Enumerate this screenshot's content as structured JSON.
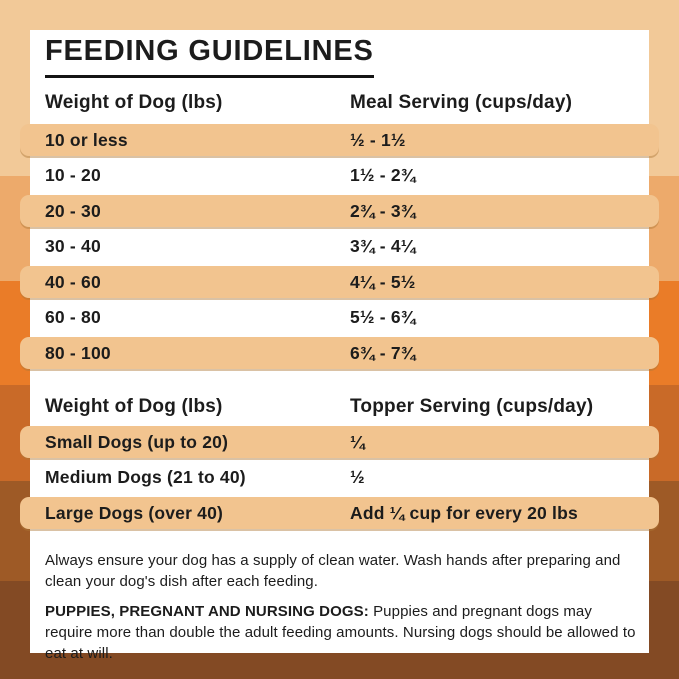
{
  "page": {
    "title": "FEEDING GUIDELINES"
  },
  "meal_table": {
    "headers": [
      "Weight of Dog (lbs)",
      "Meal Serving (cups/day)"
    ],
    "rows": [
      [
        "10 or less",
        "½ - 1½"
      ],
      [
        "10 - 20",
        "1½ - 2¾"
      ],
      [
        "20 - 30",
        "2¾ - 3¾"
      ],
      [
        "30 - 40",
        "3¾ - 4¼"
      ],
      [
        "40 - 60",
        "4¼ - 5½"
      ],
      [
        "60 - 80",
        "5½ - 6¾"
      ],
      [
        "80 - 100",
        "6¾ - 7¾"
      ]
    ]
  },
  "topper_table": {
    "headers": [
      "Weight of Dog (lbs)",
      "Topper Serving (cups/day)"
    ],
    "rows": [
      [
        "Small Dogs (up to 20)",
        "¼"
      ],
      [
        "Medium Dogs (21 to 40)",
        "½"
      ],
      [
        "Large Dogs (over 40)",
        "Add ¼ cup for every 20 lbs"
      ]
    ]
  },
  "notes": {
    "water": "Always ensure your dog has a supply of clean water. Wash hands after preparing and clean your dog's dish after each feeding.",
    "puppies_label": "PUPPIES, PREGNANT AND NURSING DOGS:",
    "puppies_text": " Puppies and pregnant dogs may require more than double the adult feeding amounts. Nursing dogs should be allowed to eat at will."
  },
  "colors": {
    "text": "#1c1c1c",
    "card": "#ffffff",
    "row_highlight": "#f2c48f",
    "background_bands": [
      "#f2c998",
      "#edaa6b",
      "#ea7c28",
      "#c96a28",
      "#9e5a26",
      "#834a24"
    ]
  }
}
